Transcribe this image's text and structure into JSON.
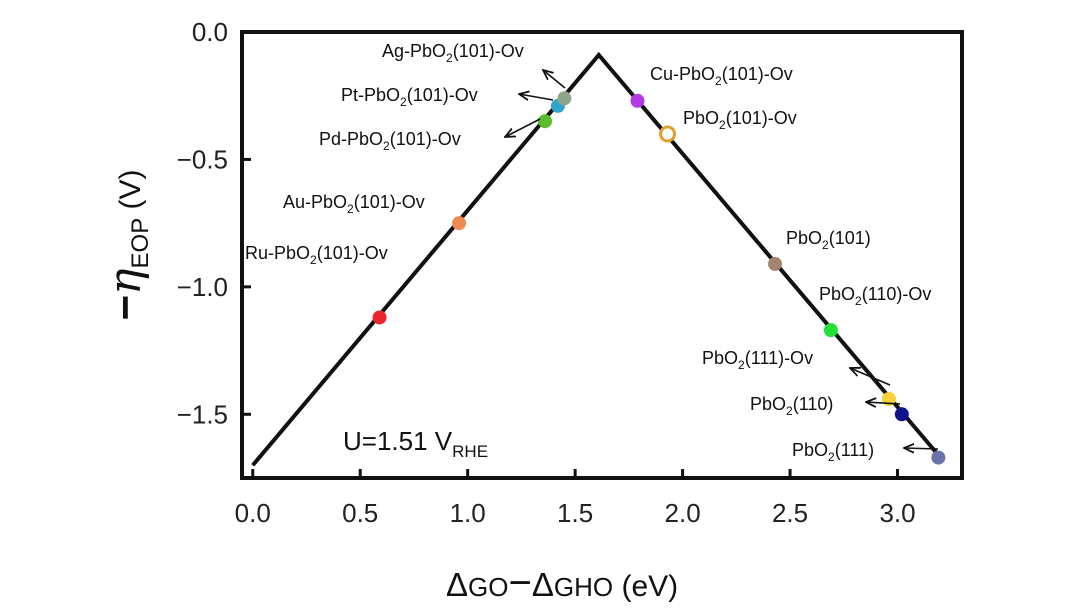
{
  "chart_data": {
    "type": "line",
    "xlabel": "ΔGO−ΔGHO (eV)",
    "xlabel_parts": {
      "delta1": "Δ",
      "g1": "GO",
      "minus": "−",
      "delta2": "Δ",
      "g2": "GHO",
      "unit": " (eV)"
    },
    "ylabel_parts": {
      "minus": "−",
      "eta": "η",
      "sub": "EOP",
      "unit": " (V)"
    },
    "xlim": [
      -0.05,
      3.3
    ],
    "ylim": [
      -1.75,
      0.0
    ],
    "xticks": [
      0.0,
      0.5,
      1.0,
      1.5,
      2.0,
      2.5,
      3.0
    ],
    "xtick_labels": [
      "0.0",
      "0.5",
      "1.0",
      "1.5",
      "2.0",
      "2.5",
      "3.0"
    ],
    "yticks": [
      0.0,
      -0.5,
      -1.0,
      -1.5
    ],
    "ytick_labels": [
      "0.0",
      "−0.5",
      "−1.0",
      "−1.5"
    ],
    "volcano_line": {
      "x": [
        0.0,
        1.61,
        3.2
      ],
      "y": [
        -1.7,
        -0.09,
        -1.67
      ]
    },
    "annotation": {
      "main": "U=1.51 V",
      "sub": "RHE"
    },
    "points": [
      {
        "base": "Ru-PbO",
        "sub": "2",
        "suffix": "(101)-Ov",
        "x": 0.59,
        "y": -1.12,
        "color": "#e8262b",
        "hollow": false
      },
      {
        "base": "Au-PbO",
        "sub": "2",
        "suffix": "(101)-Ov",
        "x": 0.96,
        "y": -0.75,
        "color": "#ef8a52",
        "hollow": false
      },
      {
        "base": "Pd-PbO",
        "sub": "2",
        "suffix": "(101)-Ov",
        "x": 1.36,
        "y": -0.35,
        "color": "#5dbb2f",
        "hollow": false
      },
      {
        "base": "Pt-PbO",
        "sub": "2",
        "suffix": "(101)-Ov",
        "x": 1.42,
        "y": -0.29,
        "color": "#2fa6c9",
        "hollow": false
      },
      {
        "base": "Ag-PbO",
        "sub": "2",
        "suffix": "(101)-Ov",
        "x": 1.45,
        "y": -0.26,
        "color": "#8fa58a",
        "hollow": false
      },
      {
        "base": "Cu-PbO",
        "sub": "2",
        "suffix": "(101)-Ov",
        "x": 1.79,
        "y": -0.27,
        "color": "#b23be6",
        "hollow": false
      },
      {
        "base": "PbO",
        "sub": "2",
        "suffix": "(101)-Ov",
        "x": 1.93,
        "y": -0.4,
        "color": "#e0a12b",
        "hollow": true
      },
      {
        "base": "PbO",
        "sub": "2",
        "suffix": "(101)",
        "x": 2.43,
        "y": -0.91,
        "color": "#a48470",
        "hollow": false
      },
      {
        "base": "PbO",
        "sub": "2",
        "suffix": "(110)-Ov",
        "x": 2.69,
        "y": -1.17,
        "color": "#22e135",
        "hollow": false
      },
      {
        "base": "PbO",
        "sub": "2",
        "suffix": "(111)-Ov",
        "x": 2.96,
        "y": -1.44,
        "color": "#f5d23a",
        "hollow": false
      },
      {
        "base": "PbO",
        "sub": "2",
        "suffix": "(110)",
        "x": 3.02,
        "y": -1.5,
        "color": "#10128c",
        "hollow": false
      },
      {
        "base": "PbO",
        "sub": "2",
        "suffix": "(111)",
        "x": 3.19,
        "y": -1.67,
        "color": "#6a72a8",
        "hollow": false
      }
    ]
  }
}
